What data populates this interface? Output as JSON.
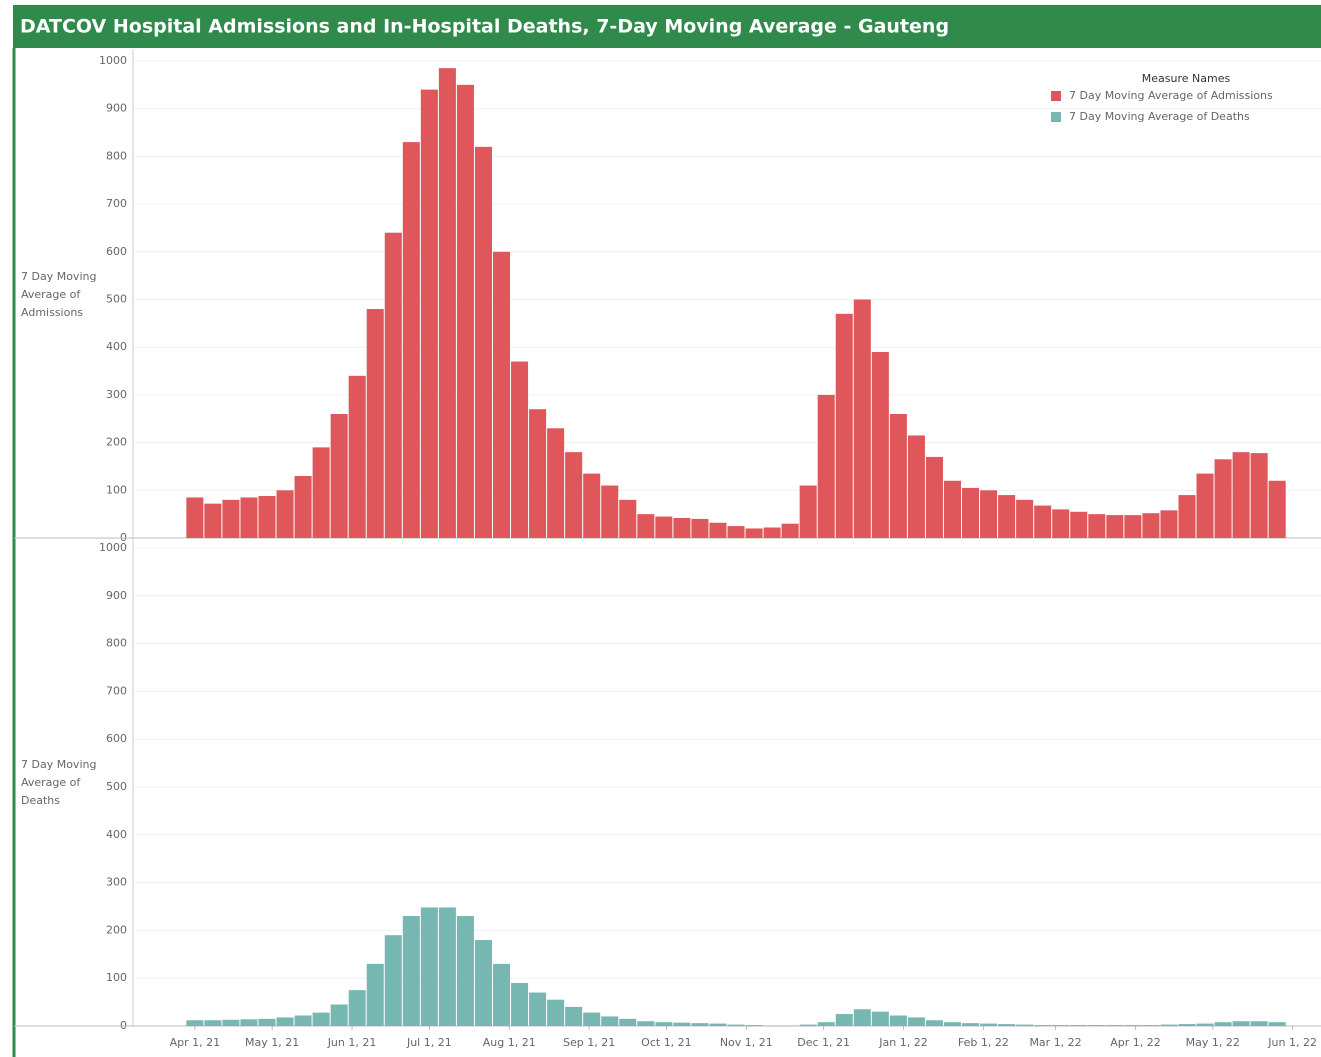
{
  "chart_data": {
    "type": "bar",
    "title": "DATCOV Hospital Admissions and In-Hospital Deaths, 7-Day Moving Average - Gauteng",
    "legend_title": "Measure Names",
    "legend": "top-right",
    "grid": true,
    "xlim": [
      "2021-03-08",
      "2022-06-12"
    ],
    "xticks": [
      {
        "value": "2021-04-01",
        "label": "Apr 1, 21"
      },
      {
        "value": "2021-05-01",
        "label": "May 1, 21"
      },
      {
        "value": "2021-06-01",
        "label": "Jun 1, 21"
      },
      {
        "value": "2021-07-01",
        "label": "Jul 1, 21"
      },
      {
        "value": "2021-08-01",
        "label": "Aug 1, 21"
      },
      {
        "value": "2021-09-01",
        "label": "Sep 1, 21"
      },
      {
        "value": "2021-10-01",
        "label": "Oct 1, 21"
      },
      {
        "value": "2021-11-01",
        "label": "Nov 1, 21"
      },
      {
        "value": "2021-12-01",
        "label": "Dec 1, 21"
      },
      {
        "value": "2022-01-01",
        "label": "Jan 1, 22"
      },
      {
        "value": "2022-02-01",
        "label": "Feb 1, 22"
      },
      {
        "value": "2022-03-01",
        "label": "Mar 1, 22"
      },
      {
        "value": "2022-04-01",
        "label": "Apr 1, 22"
      },
      {
        "value": "2022-05-01",
        "label": "May 1, 22"
      },
      {
        "value": "2022-06-01",
        "label": "Jun 1, 22"
      }
    ],
    "ylim": [
      0,
      1000
    ],
    "yticks": [
      0,
      100,
      200,
      300,
      400,
      500,
      600,
      700,
      800,
      900,
      1000
    ],
    "x": [
      "2021-04-01",
      "2021-04-08",
      "2021-04-15",
      "2021-04-22",
      "2021-04-29",
      "2021-05-06",
      "2021-05-13",
      "2021-05-20",
      "2021-05-27",
      "2021-06-03",
      "2021-06-10",
      "2021-06-17",
      "2021-06-24",
      "2021-07-01",
      "2021-07-08",
      "2021-07-15",
      "2021-07-22",
      "2021-07-29",
      "2021-08-05",
      "2021-08-12",
      "2021-08-19",
      "2021-08-26",
      "2021-09-02",
      "2021-09-09",
      "2021-09-16",
      "2021-09-23",
      "2021-09-30",
      "2021-10-07",
      "2021-10-14",
      "2021-10-21",
      "2021-10-28",
      "2021-11-04",
      "2021-11-11",
      "2021-11-18",
      "2021-11-25",
      "2021-12-02",
      "2021-12-09",
      "2021-12-16",
      "2021-12-23",
      "2021-12-30",
      "2022-01-06",
      "2022-01-13",
      "2022-01-20",
      "2022-01-27",
      "2022-02-03",
      "2022-02-10",
      "2022-02-17",
      "2022-02-24",
      "2022-03-03",
      "2022-03-10",
      "2022-03-17",
      "2022-03-24",
      "2022-03-31",
      "2022-04-07",
      "2022-04-14",
      "2022-04-21",
      "2022-04-28",
      "2022-05-05",
      "2022-05-12",
      "2022-05-19",
      "2022-05-26"
    ],
    "series": [
      {
        "name": "7 Day Moving Average of Admissions",
        "y_label": "7 Day Moving Average of Admissions",
        "color": "#e0575b",
        "values": [
          85,
          72,
          80,
          85,
          88,
          100,
          130,
          190,
          260,
          340,
          480,
          640,
          830,
          940,
          985,
          950,
          820,
          600,
          370,
          270,
          230,
          180,
          135,
          110,
          80,
          50,
          45,
          42,
          40,
          32,
          25,
          20,
          22,
          30,
          110,
          300,
          470,
          500,
          390,
          260,
          215,
          170,
          120,
          105,
          100,
          90,
          80,
          68,
          60,
          55,
          50,
          48,
          48,
          52,
          58,
          90,
          135,
          165,
          180,
          178,
          120
        ]
      },
      {
        "name": "7 Day Moving Average of Deaths",
        "y_label": "7 Day Moving Average of Deaths",
        "color": "#76b7b2",
        "values": [
          12,
          12,
          13,
          14,
          15,
          18,
          22,
          28,
          45,
          75,
          130,
          190,
          230,
          248,
          248,
          230,
          180,
          130,
          90,
          70,
          55,
          40,
          28,
          20,
          15,
          10,
          8,
          7,
          6,
          5,
          3,
          2,
          1,
          1,
          3,
          8,
          25,
          35,
          30,
          22,
          18,
          12,
          8,
          6,
          5,
          4,
          3,
          2,
          2,
          2,
          2,
          2,
          2,
          2,
          3,
          4,
          5,
          8,
          10,
          10,
          8
        ]
      }
    ]
  }
}
